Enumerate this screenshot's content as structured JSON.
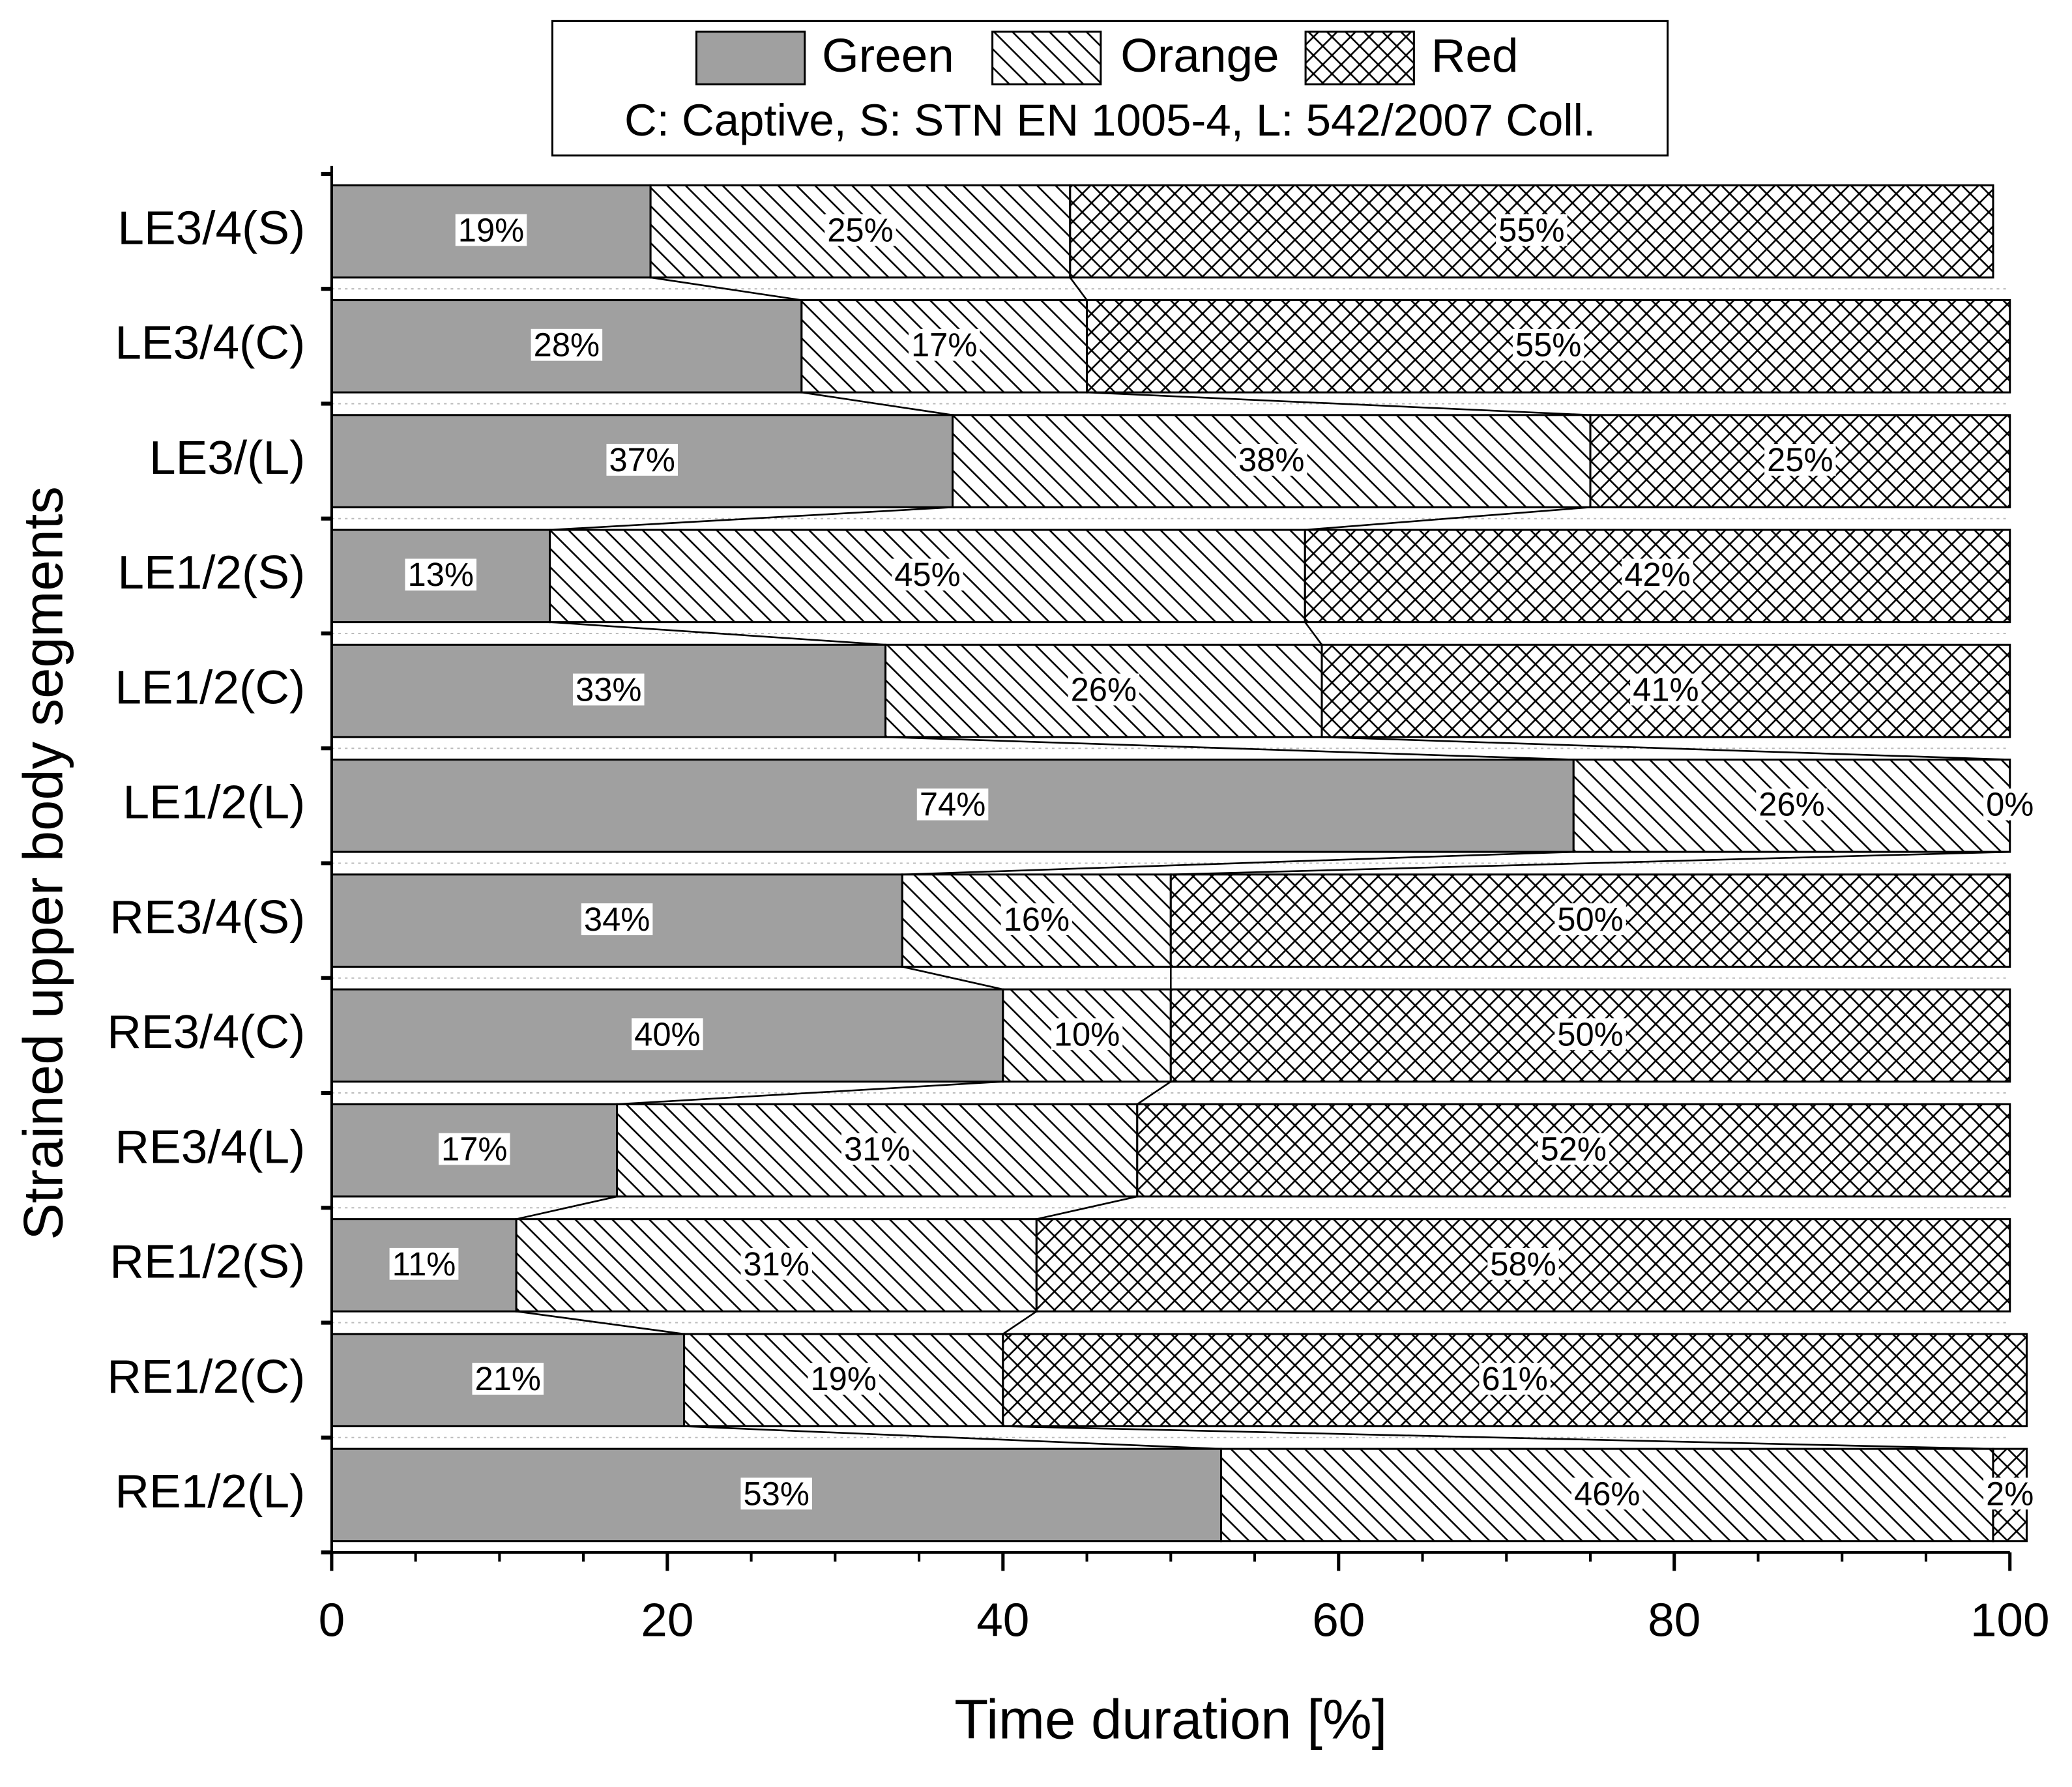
{
  "chart_data": {
    "type": "stacked-barh",
    "x_label": "Time duration [%]",
    "y_label": "Strained upper body segments",
    "legend_note": "C: Captive, S: STN EN 1005-4, L: 542/2007 Coll.",
    "categories": [
      "LE3/4(S)",
      "LE3/4(C)",
      "LE3/(L)",
      "LE1/2(S)",
      "LE1/2(C)",
      "LE1/2(L)",
      "RE3/4(S)",
      "RE3/4(C)",
      "RE3/4(L)",
      "RE1/2(S)",
      "RE1/2(C)",
      "RE1/2(L)"
    ],
    "series": [
      {
        "name": "Green",
        "color": "#a0a0a0",
        "pattern": "solid",
        "values": [
          19,
          28,
          37,
          13,
          33,
          74,
          34,
          40,
          17,
          11,
          21,
          53
        ],
        "value_labels": [
          "19%",
          "28%",
          "37%",
          "13%",
          "33%",
          "74%",
          "34%",
          "40%",
          "17%",
          "11%",
          "21%",
          "53%"
        ]
      },
      {
        "name": "Orange",
        "color": "#000000",
        "pattern": "hatch",
        "values": [
          25,
          17,
          38,
          45,
          26,
          26,
          16,
          10,
          31,
          31,
          19,
          46
        ],
        "value_labels": [
          "25%",
          "17%",
          "38%",
          "45%",
          "26%",
          "26%",
          "16%",
          "10%",
          "31%",
          "31%",
          "19%",
          "46%"
        ]
      },
      {
        "name": "Red",
        "color": "#000000",
        "pattern": "crosshatch",
        "values": [
          55,
          55,
          25,
          42,
          41,
          0,
          50,
          50,
          52,
          58,
          61,
          2
        ],
        "value_labels": [
          "55%",
          "55%",
          "25%",
          "42%",
          "41%",
          "0%",
          "50%",
          "50%",
          "52%",
          "58%",
          "61%",
          "2%"
        ]
      }
    ],
    "xlim": [
      0,
      100
    ],
    "xticks": [
      0,
      20,
      40,
      60,
      80,
      100
    ],
    "xminor": 10,
    "connectors": true
  }
}
